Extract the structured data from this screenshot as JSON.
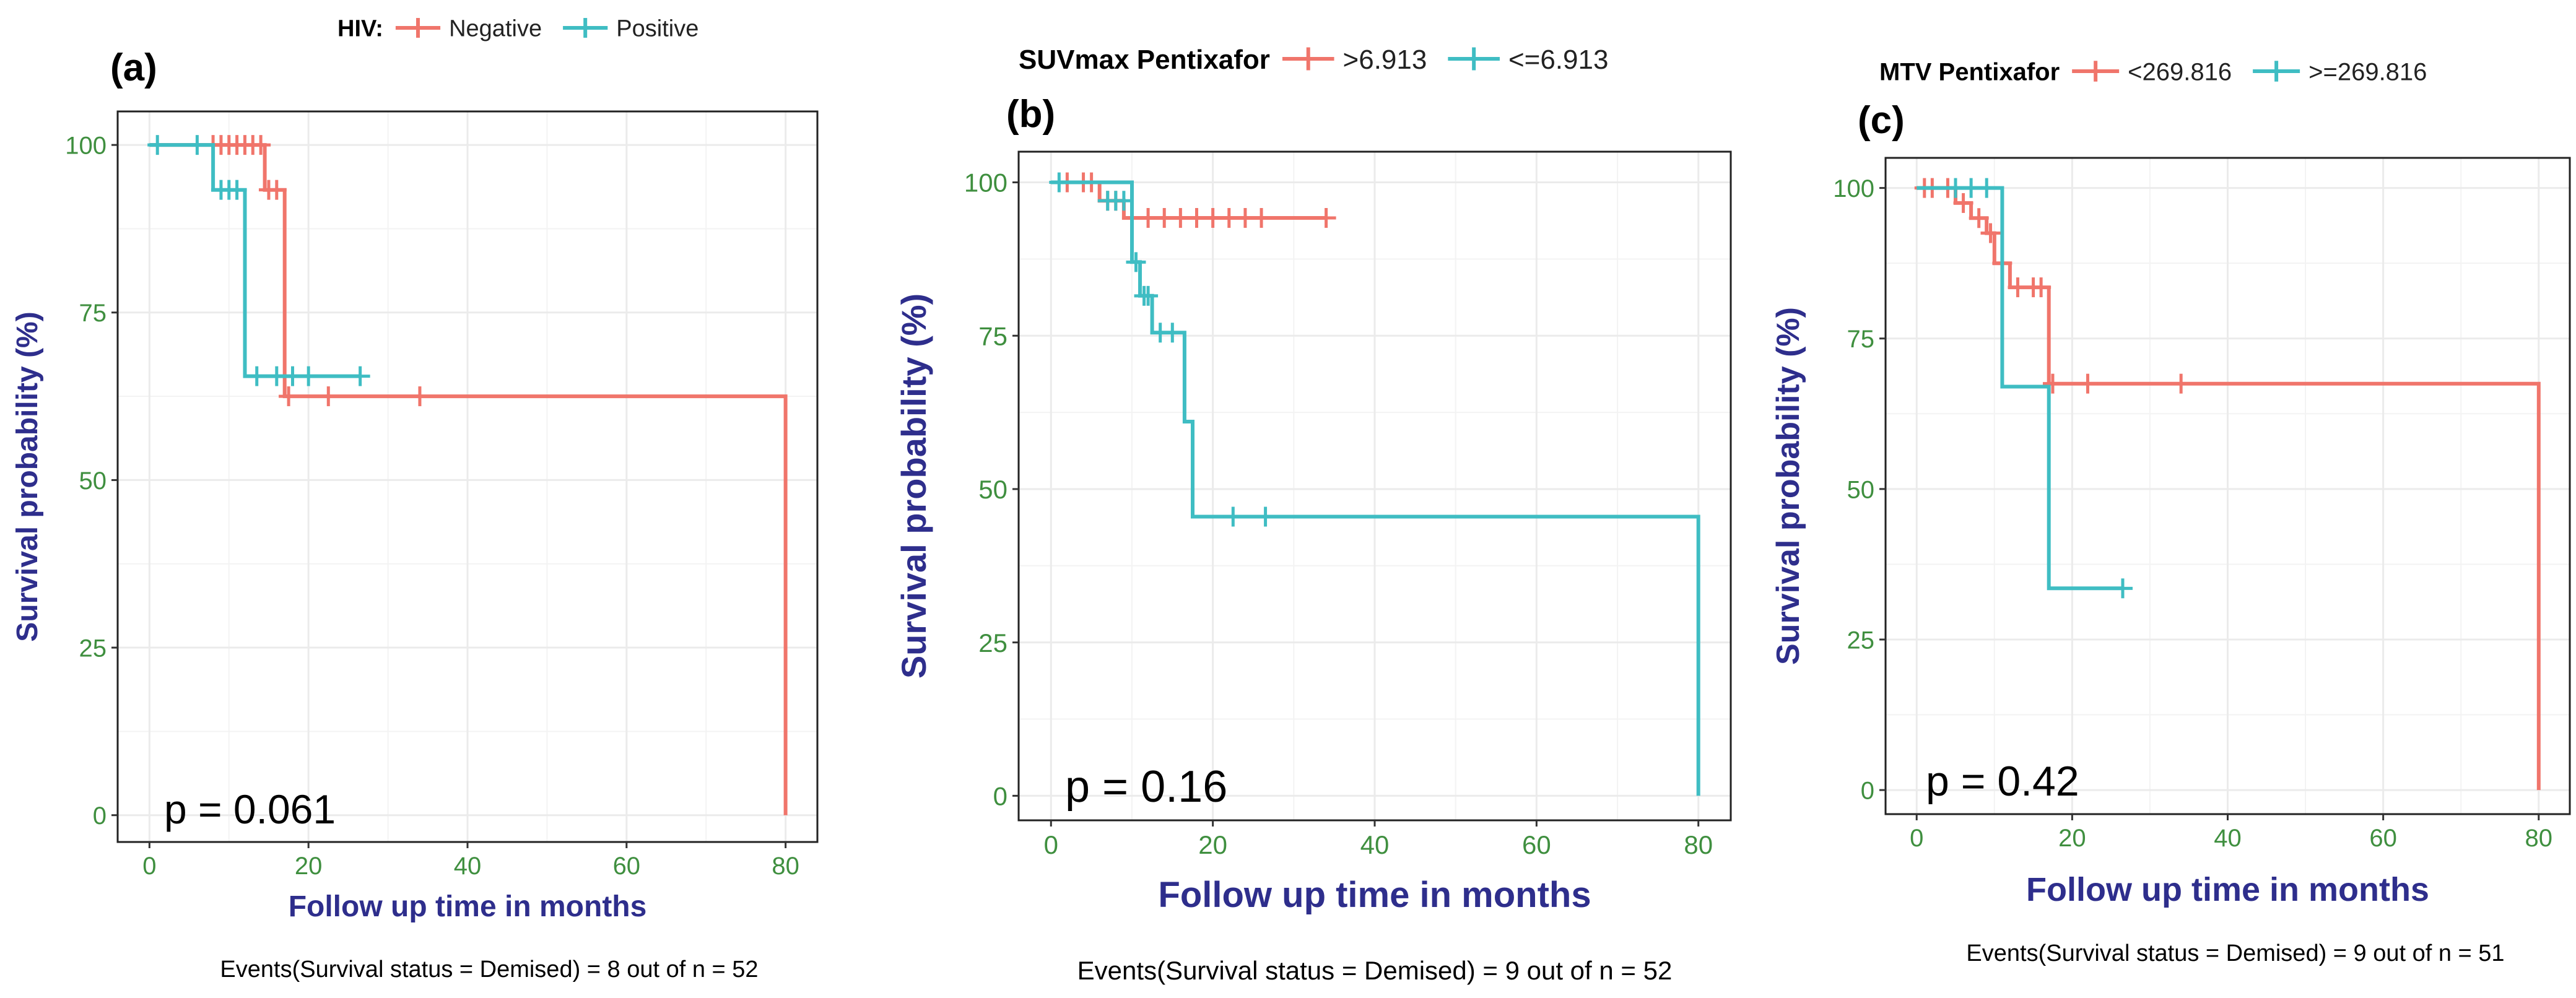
{
  "colors": {
    "red": "#F0756B",
    "teal": "#3FBDC3",
    "axis_text": "#2E2E8C",
    "tick_text": "#3F8F3F",
    "grid": "#EBEBEB",
    "frame": "#222222"
  },
  "chart_data": [
    {
      "type": "line",
      "chart_kind": "kaplan-meier",
      "panel_label": "(a)",
      "legend_title": "HIV:",
      "legend_position": "top",
      "xlabel": "Follow up time in months",
      "ylabel": "Survival probability (%)",
      "xlim": [
        -4,
        84
      ],
      "ylim": [
        -4,
        105
      ],
      "xticks": [
        0,
        20,
        40,
        60,
        80
      ],
      "yticks": [
        0,
        25,
        50,
        75,
        100
      ],
      "grid": true,
      "pvalue": "p = 0.061",
      "caption": "Events(Survival status = Demised) = 8 out of n = 52",
      "series": [
        {
          "name": "Negative",
          "color": "#F0756B",
          "steps": [
            [
              0,
              100
            ],
            [
              14.5,
              100
            ],
            [
              14.5,
              93.3
            ],
            [
              17,
              93.3
            ],
            [
              17,
              62.5
            ],
            [
              80,
              62.5
            ],
            [
              80,
              0
            ]
          ],
          "censors": [
            [
              8,
              100
            ],
            [
              9,
              100
            ],
            [
              10,
              100
            ],
            [
              11,
              100
            ],
            [
              12,
              100
            ],
            [
              13,
              100
            ],
            [
              14,
              100
            ],
            [
              15,
              93.3
            ],
            [
              16,
              93.3
            ],
            [
              17.5,
              62.5
            ],
            [
              22.5,
              62.5
            ],
            [
              34,
              62.5
            ]
          ]
        },
        {
          "name": "Positive",
          "color": "#3FBDC3",
          "steps": [
            [
              0,
              100
            ],
            [
              8,
              100
            ],
            [
              8,
              93.3
            ],
            [
              12,
              93.3
            ],
            [
              12,
              65.5
            ],
            [
              26.5,
              65.5
            ]
          ],
          "censors": [
            [
              1,
              100
            ],
            [
              6,
              100
            ],
            [
              9,
              93.3
            ],
            [
              10,
              93.3
            ],
            [
              11,
              93.3
            ],
            [
              13.5,
              65.5
            ],
            [
              16,
              65.5
            ],
            [
              18,
              65.5
            ],
            [
              20,
              65.5
            ],
            [
              26.5,
              65.5
            ]
          ]
        }
      ]
    },
    {
      "type": "line",
      "chart_kind": "kaplan-meier",
      "panel_label": "(b)",
      "legend_title": "SUVmax Pentixafor",
      "legend_position": "top",
      "xlabel": "Follow up time in months",
      "ylabel": "Survival probability (%)",
      "xlim": [
        -4,
        84
      ],
      "ylim": [
        -4,
        105
      ],
      "xticks": [
        0,
        20,
        40,
        60,
        80
      ],
      "yticks": [
        0,
        25,
        50,
        75,
        100
      ],
      "grid": true,
      "pvalue": "p = 0.16",
      "caption": "Events(Survival status = Demised) = 9 out of n = 52",
      "series": [
        {
          "name": ">6.913",
          "color": "#F0756B",
          "steps": [
            [
              0,
              100
            ],
            [
              6,
              100
            ],
            [
              6,
              97
            ],
            [
              9,
              97
            ],
            [
              9,
              94.2
            ],
            [
              34,
              94.2
            ]
          ],
          "censors": [
            [
              2,
              100
            ],
            [
              4,
              100
            ],
            [
              5,
              100
            ],
            [
              7,
              97
            ],
            [
              8,
              97
            ],
            [
              10,
              94.2
            ],
            [
              12,
              94.2
            ],
            [
              14,
              94.2
            ],
            [
              16,
              94.2
            ],
            [
              18,
              94.2
            ],
            [
              20,
              94.2
            ],
            [
              22,
              94.2
            ],
            [
              24,
              94.2
            ],
            [
              26,
              94.2
            ],
            [
              34,
              94.2
            ]
          ]
        },
        {
          "name": "<=6.913",
          "color": "#3FBDC3",
          "steps": [
            [
              0,
              100
            ],
            [
              10,
              100
            ],
            [
              10,
              87
            ],
            [
              11,
              87
            ],
            [
              11,
              81.5
            ],
            [
              12.5,
              81.5
            ],
            [
              12.5,
              75.5
            ],
            [
              16.5,
              75.5
            ],
            [
              16.5,
              61
            ],
            [
              17.5,
              61
            ],
            [
              17.5,
              45.5
            ],
            [
              80,
              45.5
            ],
            [
              80,
              0
            ]
          ],
          "censors": [
            [
              1,
              100
            ],
            [
              7,
              97
            ],
            [
              8,
              97
            ],
            [
              9,
              97
            ],
            [
              10.5,
              87
            ],
            [
              11.5,
              81.5
            ],
            [
              12,
              81.5
            ],
            [
              13.5,
              75.5
            ],
            [
              15,
              75.5
            ],
            [
              22.5,
              45.5
            ],
            [
              26.5,
              45.5
            ]
          ]
        }
      ]
    },
    {
      "type": "line",
      "chart_kind": "kaplan-meier",
      "panel_label": "(c)",
      "legend_title": "MTV Pentixafor",
      "legend_position": "top",
      "xlabel": "Follow up time in months",
      "ylabel": "Survival probability (%)",
      "xlim": [
        -4,
        84
      ],
      "ylim": [
        -4,
        105
      ],
      "xticks": [
        0,
        20,
        40,
        60,
        80
      ],
      "yticks": [
        0,
        25,
        50,
        75,
        100
      ],
      "grid": true,
      "pvalue": "p = 0.42",
      "caption": "Events(Survival status = Demised) = 9 out of n = 51",
      "series": [
        {
          "name": "<269.816",
          "color": "#F0756B",
          "steps": [
            [
              0,
              100
            ],
            [
              5,
              100
            ],
            [
              5,
              97.5
            ],
            [
              7,
              97.5
            ],
            [
              7,
              95
            ],
            [
              9,
              95
            ],
            [
              9,
              92.5
            ],
            [
              10,
              92.5
            ],
            [
              10,
              87.5
            ],
            [
              12,
              87.5
            ],
            [
              12,
              83.5
            ],
            [
              17,
              83.5
            ],
            [
              17,
              67.5
            ],
            [
              80,
              67.5
            ],
            [
              80,
              0
            ]
          ],
          "censors": [
            [
              1,
              100
            ],
            [
              2,
              100
            ],
            [
              4,
              100
            ],
            [
              6,
              97.5
            ],
            [
              8,
              95
            ],
            [
              9.5,
              92.5
            ],
            [
              11,
              87.5
            ],
            [
              13,
              83.5
            ],
            [
              15,
              83.5
            ],
            [
              16,
              83.5
            ],
            [
              17.5,
              67.5
            ],
            [
              22,
              67.5
            ],
            [
              34,
              67.5
            ]
          ]
        },
        {
          "name": ">=269.816",
          "color": "#3FBDC3",
          "steps": [
            [
              0,
              100
            ],
            [
              11,
              100
            ],
            [
              11,
              67
            ],
            [
              17,
              67
            ],
            [
              17,
              33.5
            ],
            [
              26.5,
              33.5
            ]
          ],
          "censors": [
            [
              5,
              100
            ],
            [
              7,
              100
            ],
            [
              9,
              100
            ],
            [
              26.5,
              33.5
            ]
          ]
        }
      ]
    }
  ]
}
